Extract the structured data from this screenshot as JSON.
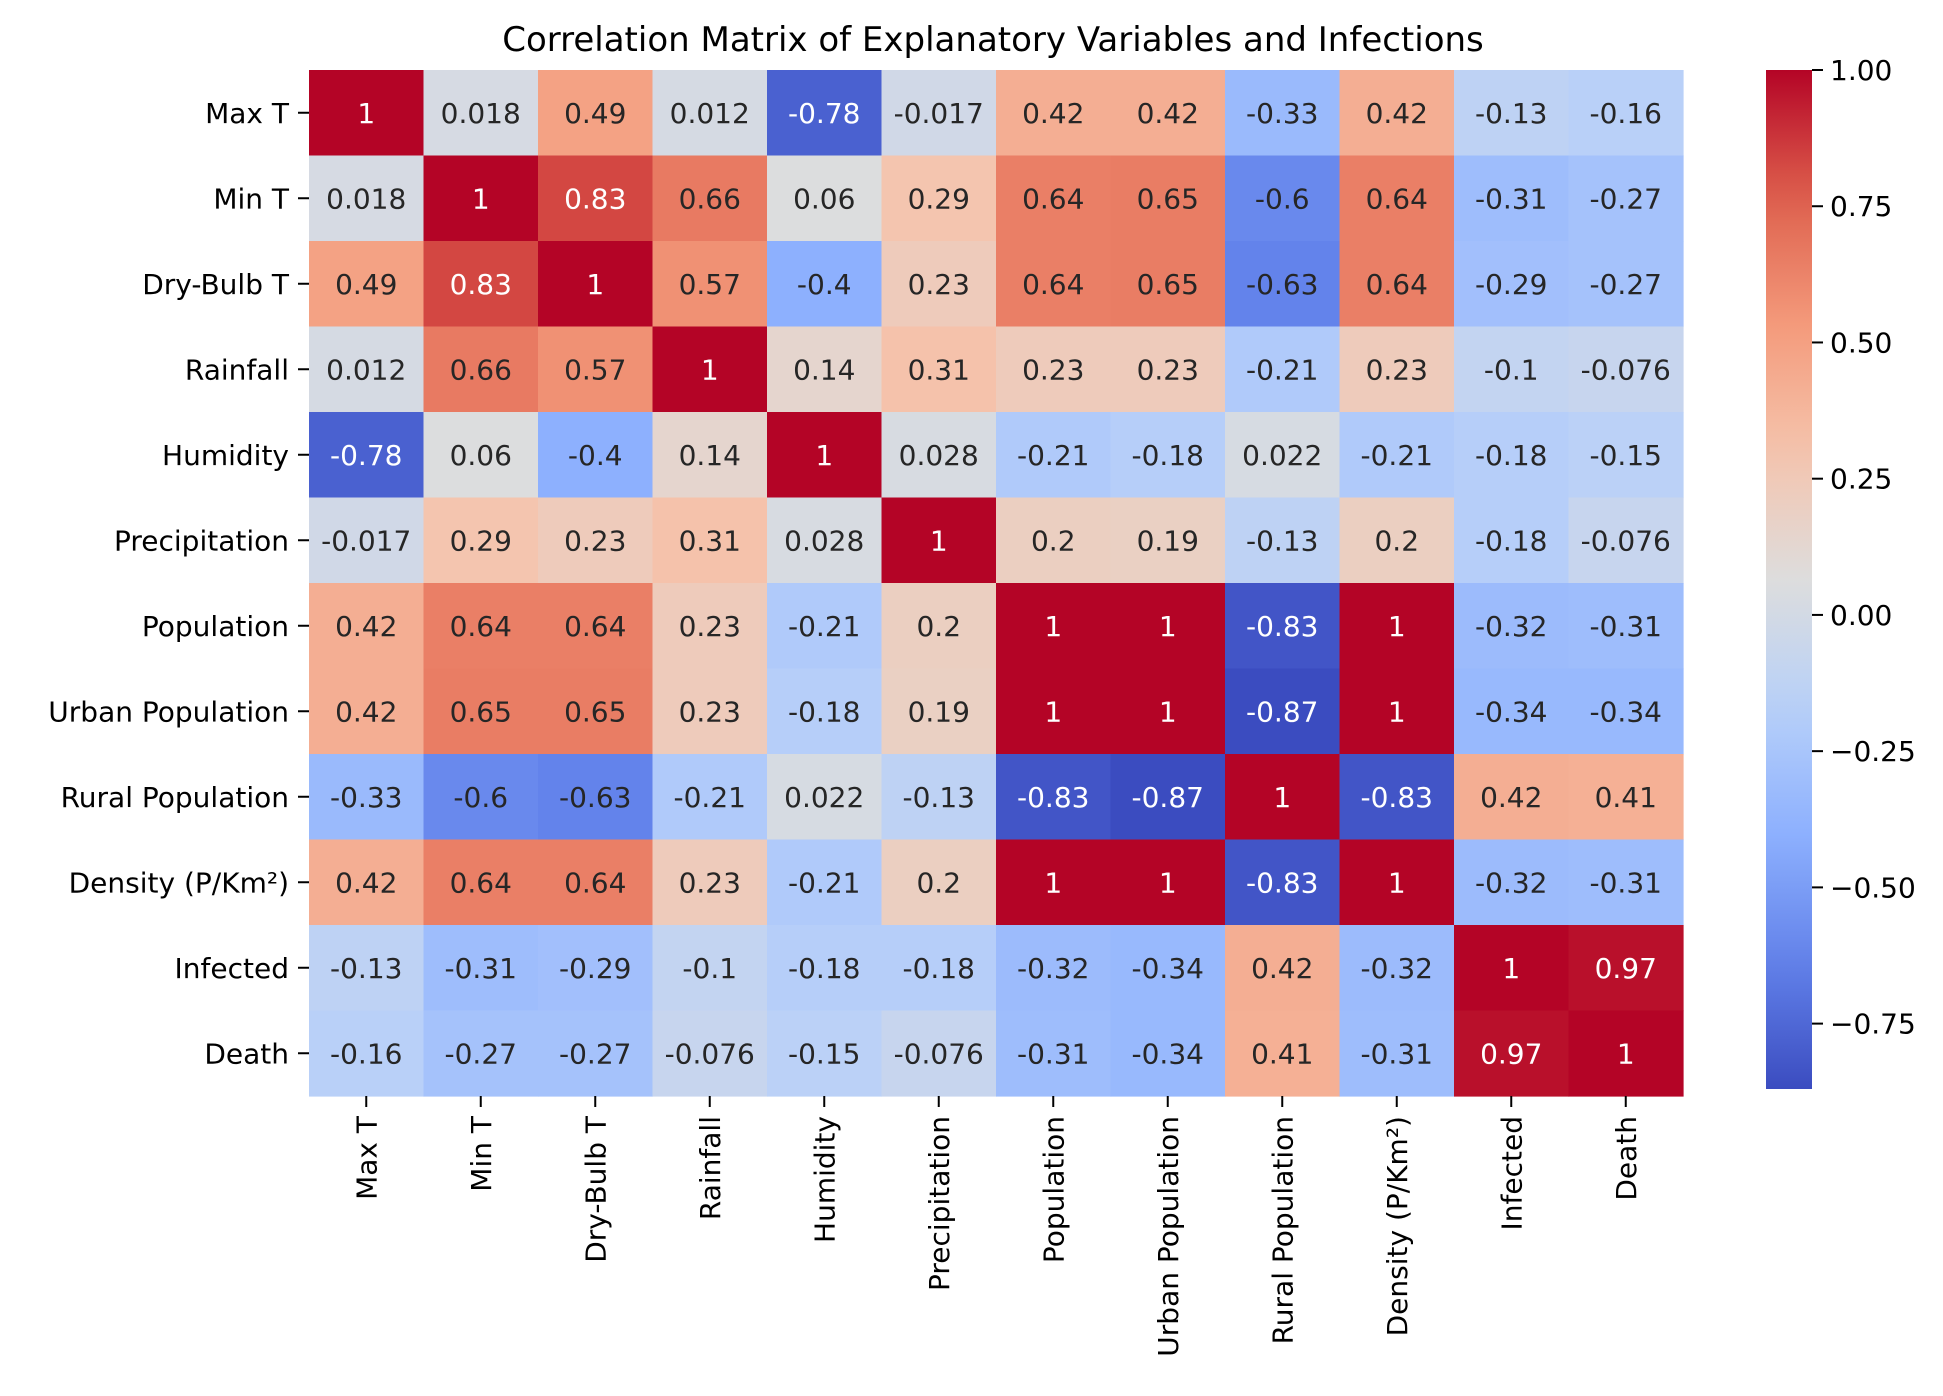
{
  "chart_data": {
    "type": "heatmap",
    "title": "Correlation Matrix of Explanatory Variables and Infections",
    "labels": [
      "Max T",
      "Min T",
      "Dry-Bulb T",
      "Rainfall",
      "Humidity",
      "Precipitation",
      "Population",
      "Urban Population",
      "Rural Population",
      "Density (P/Km²)",
      "Infected",
      "Death"
    ],
    "values": [
      [
        1,
        0.018,
        0.49,
        0.012,
        -0.78,
        -0.017,
        0.42,
        0.42,
        -0.33,
        0.42,
        -0.13,
        -0.16
      ],
      [
        0.018,
        1,
        0.83,
        0.66,
        0.06,
        0.29,
        0.64,
        0.65,
        -0.6,
        0.64,
        -0.31,
        -0.27
      ],
      [
        0.49,
        0.83,
        1,
        0.57,
        -0.4,
        0.23,
        0.64,
        0.65,
        -0.63,
        0.64,
        -0.29,
        -0.27
      ],
      [
        0.012,
        0.66,
        0.57,
        1,
        0.14,
        0.31,
        0.23,
        0.23,
        -0.21,
        0.23,
        -0.1,
        -0.076
      ],
      [
        -0.78,
        0.06,
        -0.4,
        0.14,
        1,
        0.028,
        -0.21,
        -0.18,
        0.022,
        -0.21,
        -0.18,
        -0.15
      ],
      [
        -0.017,
        0.29,
        0.23,
        0.31,
        0.028,
        1,
        0.2,
        0.19,
        -0.13,
        0.2,
        -0.18,
        -0.076
      ],
      [
        0.42,
        0.64,
        0.64,
        0.23,
        -0.21,
        0.2,
        1,
        1,
        -0.83,
        1,
        -0.32,
        -0.31
      ],
      [
        0.42,
        0.65,
        0.65,
        0.23,
        -0.18,
        0.19,
        1,
        1,
        -0.87,
        1,
        -0.34,
        -0.34
      ],
      [
        -0.33,
        -0.6,
        -0.63,
        -0.21,
        0.022,
        -0.13,
        -0.83,
        -0.87,
        1,
        -0.83,
        0.42,
        0.41
      ],
      [
        0.42,
        0.64,
        0.64,
        0.23,
        -0.21,
        0.2,
        1,
        1,
        -0.83,
        1,
        -0.32,
        -0.31
      ],
      [
        -0.13,
        -0.31,
        -0.29,
        -0.1,
        -0.18,
        -0.18,
        -0.32,
        -0.34,
        0.42,
        -0.32,
        1,
        0.97
      ],
      [
        -0.16,
        -0.27,
        -0.27,
        -0.076,
        -0.15,
        -0.076,
        -0.31,
        -0.34,
        0.41,
        -0.31,
        0.97,
        1
      ]
    ],
    "colormap": "coolwarm",
    "vmin": -0.87,
    "vmax": 1.0,
    "colorbar_ticks": [
      "1.00",
      "0.75",
      "0.50",
      "0.25",
      "0.00",
      "−0.25",
      "−0.50",
      "−0.75"
    ],
    "colorbar_tick_values": [
      1.0,
      0.75,
      0.5,
      0.25,
      0.0,
      -0.25,
      -0.5,
      -0.75
    ],
    "annotations": true,
    "xlabel": "",
    "ylabel": ""
  }
}
